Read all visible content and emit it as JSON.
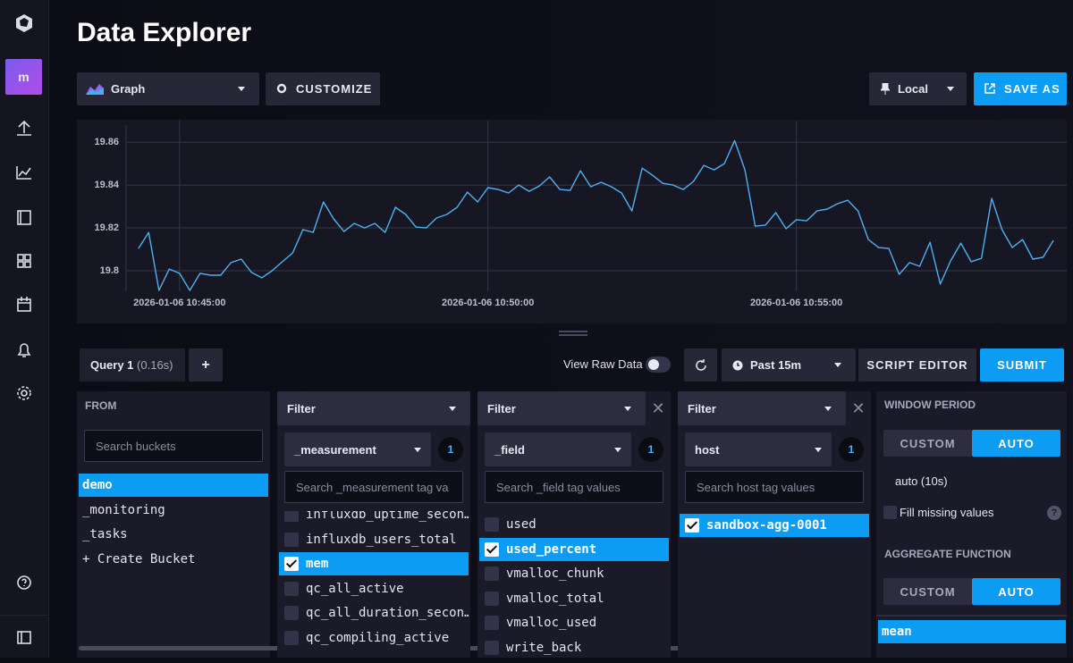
{
  "sidebar": {
    "avatar": "m"
  },
  "header": {
    "title": "Data Explorer"
  },
  "toolbar": {
    "vis_type": "Graph",
    "customize": "CUSTOMIZE",
    "timezone": "Local",
    "save_as": "SAVE AS"
  },
  "chart_data": {
    "type": "line",
    "color": "#4fb0f0",
    "grid": true,
    "x": [
      "2026-01-06 10:44:20",
      "2026-01-06 10:44:30",
      "2026-01-06 10:44:40",
      "2026-01-06 10:44:50",
      "2026-01-06 10:45:00",
      "2026-01-06 10:45:10",
      "2026-01-06 10:45:20",
      "2026-01-06 10:45:30",
      "2026-01-06 10:45:40",
      "2026-01-06 10:45:50",
      "2026-01-06 10:46:00",
      "2026-01-06 10:46:10",
      "2026-01-06 10:46:20",
      "2026-01-06 10:46:30",
      "2026-01-06 10:46:40",
      "2026-01-06 10:46:50",
      "2026-01-06 10:47:00",
      "2026-01-06 10:47:10",
      "2026-01-06 10:47:20",
      "2026-01-06 10:47:30",
      "2026-01-06 10:47:40",
      "2026-01-06 10:47:50",
      "2026-01-06 10:48:00",
      "2026-01-06 10:48:10",
      "2026-01-06 10:48:20",
      "2026-01-06 10:48:30",
      "2026-01-06 10:48:40",
      "2026-01-06 10:48:50",
      "2026-01-06 10:49:00",
      "2026-01-06 10:49:10",
      "2026-01-06 10:49:20",
      "2026-01-06 10:49:30",
      "2026-01-06 10:49:40",
      "2026-01-06 10:49:50",
      "2026-01-06 10:50:00",
      "2026-01-06 10:50:10",
      "2026-01-06 10:50:20",
      "2026-01-06 10:50:30",
      "2026-01-06 10:50:40",
      "2026-01-06 10:50:50",
      "2026-01-06 10:51:00",
      "2026-01-06 10:51:10",
      "2026-01-06 10:51:20",
      "2026-01-06 10:51:30",
      "2026-01-06 10:51:40",
      "2026-01-06 10:51:50",
      "2026-01-06 10:52:00",
      "2026-01-06 10:52:10",
      "2026-01-06 10:52:20",
      "2026-01-06 10:52:30",
      "2026-01-06 10:52:40",
      "2026-01-06 10:52:50",
      "2026-01-06 10:53:00",
      "2026-01-06 10:53:10",
      "2026-01-06 10:53:20",
      "2026-01-06 10:53:30",
      "2026-01-06 10:53:40",
      "2026-01-06 10:53:50",
      "2026-01-06 10:54:00",
      "2026-01-06 10:54:10",
      "2026-01-06 10:54:20",
      "2026-01-06 10:54:30",
      "2026-01-06 10:54:40",
      "2026-01-06 10:54:50",
      "2026-01-06 10:55:00",
      "2026-01-06 10:55:10",
      "2026-01-06 10:55:20",
      "2026-01-06 10:55:30",
      "2026-01-06 10:55:40",
      "2026-01-06 10:55:50",
      "2026-01-06 10:56:00",
      "2026-01-06 10:56:10",
      "2026-01-06 10:56:20",
      "2026-01-06 10:56:30",
      "2026-01-06 10:56:40",
      "2026-01-06 10:56:50",
      "2026-01-06 10:57:00",
      "2026-01-06 10:57:10",
      "2026-01-06 10:57:20",
      "2026-01-06 10:57:30",
      "2026-01-06 10:57:40",
      "2026-01-06 10:57:50",
      "2026-01-06 10:58:00",
      "2026-01-06 10:58:10",
      "2026-01-06 10:58:20",
      "2026-01-06 10:58:30",
      "2026-01-06 10:58:40",
      "2026-01-06 10:58:50",
      "2026-01-06 10:59:00",
      "2026-01-06 10:59:10"
    ],
    "values": [
      19.8104,
      19.8179,
      19.7908,
      19.8008,
      19.7988,
      19.7908,
      19.7988,
      19.7979,
      19.7979,
      19.8038,
      19.8054,
      19.7992,
      19.7967,
      19.8,
      19.8042,
      19.8083,
      19.8192,
      19.8179,
      19.8321,
      19.8242,
      19.8183,
      19.8221,
      19.82,
      19.8221,
      19.8179,
      19.8296,
      19.8263,
      19.8204,
      19.82,
      19.8246,
      19.8263,
      19.8296,
      19.8367,
      19.8321,
      19.8388,
      19.8379,
      19.8363,
      19.84,
      19.8371,
      19.8396,
      19.8438,
      19.8379,
      19.8375,
      19.8467,
      19.8392,
      19.8413,
      19.8392,
      19.8363,
      19.8279,
      19.8479,
      19.8446,
      19.8408,
      19.84,
      19.8379,
      19.8417,
      19.8492,
      19.8471,
      19.85,
      19.8608,
      19.8471,
      19.8208,
      19.8213,
      19.8271,
      19.8196,
      19.8238,
      19.8233,
      19.8279,
      19.8288,
      19.8313,
      19.8329,
      19.8279,
      19.8146,
      19.8108,
      19.8104,
      19.7983,
      19.8038,
      19.8021,
      19.8133,
      19.7938,
      19.8046,
      19.8129,
      19.8042,
      19.8058,
      19.8338,
      19.8192,
      19.8108,
      19.8146,
      19.8054,
      19.8063,
      19.8142
    ],
    "xlim": [
      "2026-01-06 10:44:08",
      "2026-01-06 10:59:23"
    ],
    "xticks": [
      "2026-01-06 10:45:00",
      "2026-01-06 10:50:00",
      "2026-01-06 10:55:00"
    ],
    "ylim": [
      19.7904,
      19.868
    ],
    "yticks": [
      19.8,
      19.82,
      19.84,
      19.86
    ]
  },
  "query_bar": {
    "tab": "Query 1",
    "tab_time": "(0.16s)",
    "add": "+",
    "raw_toggle": "View Raw Data",
    "time_range": "Past 15m",
    "script_editor": "SCRIPT EDITOR",
    "submit": "SUBMIT"
  },
  "builder": {
    "from": {
      "label": "FROM",
      "search_placeholder": "Search buckets",
      "buckets": [
        {
          "name": "demo",
          "selected": true
        },
        {
          "name": "_monitoring"
        },
        {
          "name": "_tasks"
        },
        {
          "name": "+ Create Bucket"
        }
      ]
    },
    "filters": [
      {
        "mode": "Filter",
        "key": "_measurement",
        "count": "1",
        "search_placeholder": "Search _measurement tag va",
        "items": [
          {
            "name": "influxdb_uptime_secon…"
          },
          {
            "name": "influxdb_users_total"
          },
          {
            "name": "mem",
            "selected": true
          },
          {
            "name": "qc_all_active"
          },
          {
            "name": "qc_all_duration_secon…"
          },
          {
            "name": "qc_compiling_active"
          }
        ]
      },
      {
        "mode": "Filter",
        "key": "_field",
        "count": "1",
        "search_placeholder": "Search _field tag values",
        "items": [
          {
            "name": "used"
          },
          {
            "name": "used_percent",
            "selected": true
          },
          {
            "name": "vmalloc_chunk"
          },
          {
            "name": "vmalloc_total"
          },
          {
            "name": "vmalloc_used"
          },
          {
            "name": "write_back"
          }
        ]
      },
      {
        "mode": "Filter",
        "key": "host",
        "count": "1",
        "search_placeholder": "Search host tag values",
        "items": [
          {
            "name": "sandbox-agg-0001",
            "selected": true
          }
        ]
      }
    ],
    "window": {
      "label": "WINDOW PERIOD",
      "custom": "CUSTOM",
      "auto": "AUTO",
      "auto_value": "auto (10s)",
      "fill_missing": "Fill missing values",
      "help": "?",
      "aggregate_label": "AGGREGATE FUNCTION",
      "agg_custom": "CUSTOM",
      "agg_auto": "AUTO",
      "functions": [
        {
          "name": "mean",
          "selected": true
        }
      ]
    }
  }
}
